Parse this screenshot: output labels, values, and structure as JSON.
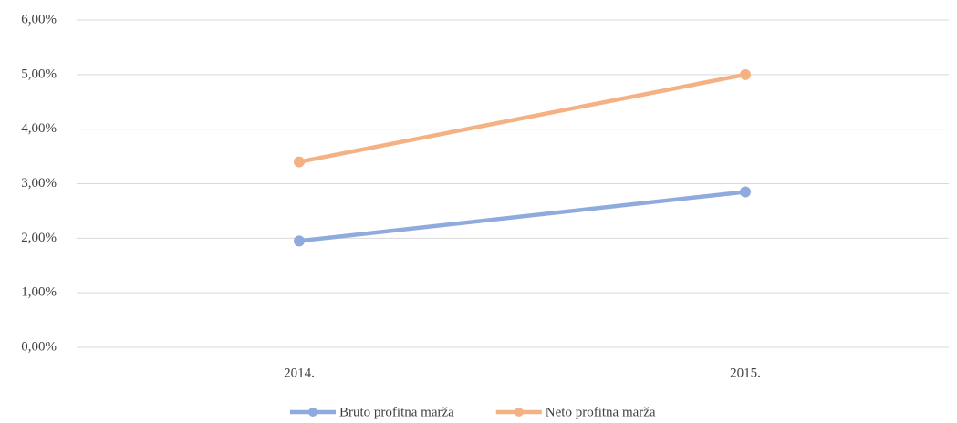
{
  "chart_data": {
    "type": "line",
    "categories": [
      "2014.",
      "2015."
    ],
    "series": [
      {
        "name": "Bruto profitna marža",
        "color": "#8faadc",
        "values": [
          1.95,
          2.85
        ]
      },
      {
        "name": "Neto profitna marža",
        "color": "#f4b183",
        "values": [
          3.4,
          5.0
        ]
      }
    ],
    "ylim": [
      0,
      6
    ],
    "yticks": [
      {
        "value": 0,
        "label": "0,00%"
      },
      {
        "value": 1,
        "label": "1,00%"
      },
      {
        "value": 2,
        "label": "2,00%"
      },
      {
        "value": 3,
        "label": "3,00%"
      },
      {
        "value": 4,
        "label": "4,00%"
      },
      {
        "value": 5,
        "label": "5,00%"
      },
      {
        "value": 6,
        "label": "6,00%"
      }
    ],
    "grid": true,
    "legend": "bottom"
  }
}
